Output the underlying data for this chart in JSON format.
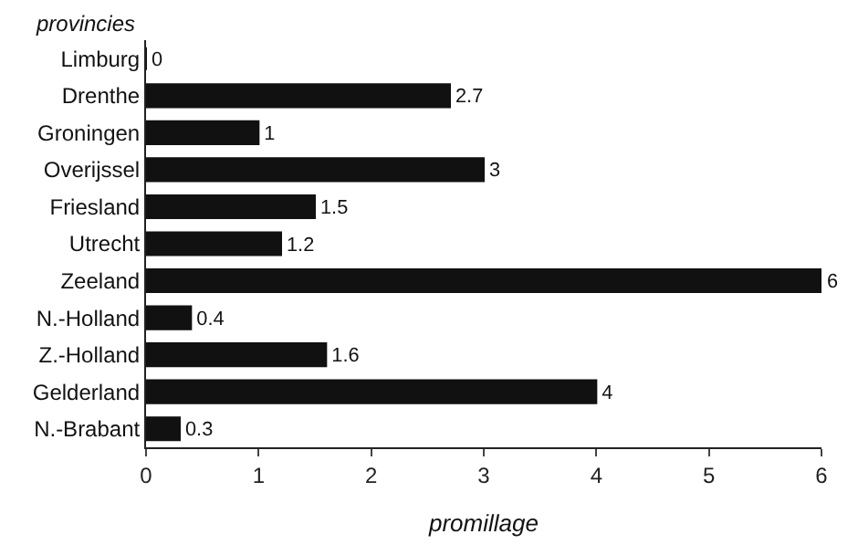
{
  "chart_data": {
    "type": "bar",
    "orientation": "horizontal",
    "ylabel": "provincies",
    "xlabel": "promillage",
    "categories": [
      "Limburg",
      "Drenthe",
      "Groningen",
      "Overijssel",
      "Friesland",
      "Utrecht",
      "Zeeland",
      "N.-Holland",
      "Z.-Holland",
      "Gelderland",
      "N.-Brabant"
    ],
    "values": [
      0,
      2.7,
      1,
      3,
      1.5,
      1.2,
      6,
      0.4,
      1.6,
      4,
      0.3
    ],
    "color": "#111111",
    "xlim": [
      0,
      6
    ],
    "xticks": [
      0,
      1,
      2,
      3,
      4,
      5,
      6
    ],
    "data_labels": true
  }
}
